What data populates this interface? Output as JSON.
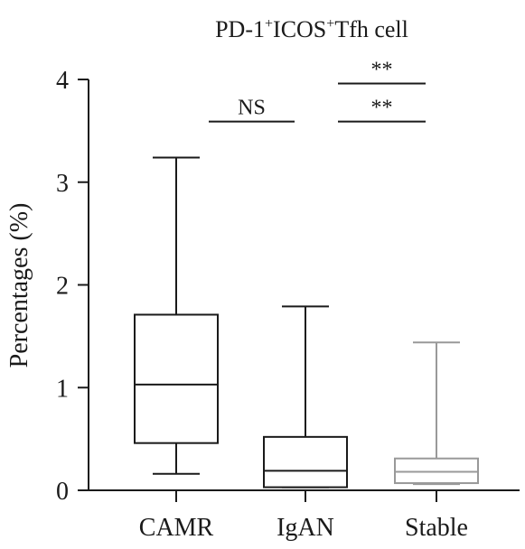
{
  "chart_data": {
    "type": "boxplot",
    "title_parts": [
      {
        "text": "PD-1",
        "sup": false
      },
      {
        "text": "+",
        "sup": true
      },
      {
        "text": "ICOS",
        "sup": false
      },
      {
        "text": "+",
        "sup": true
      },
      {
        "text": "Tfh cell",
        "sup": false
      }
    ],
    "ylabel": "Percentages (%)",
    "ylim": [
      0,
      4
    ],
    "yticks": [
      "0",
      "1",
      "2",
      "3",
      "4"
    ],
    "grid": false,
    "categories": [
      "CAMR",
      "IgAN",
      "Stable"
    ],
    "boxes": [
      {
        "category": "CAMR",
        "min": 0.16,
        "q1": 0.46,
        "median": 1.03,
        "q3": 1.71,
        "max": 3.24,
        "color": "#1a1a1a"
      },
      {
        "category": "IgAN",
        "min": 0.03,
        "q1": 0.03,
        "median": 0.19,
        "q3": 0.52,
        "max": 1.79,
        "color": "#1a1a1a"
      },
      {
        "category": "Stable",
        "min": 0.06,
        "q1": 0.07,
        "median": 0.18,
        "q3": 0.31,
        "max": 1.44,
        "color": "#999999"
      }
    ],
    "significance": [
      {
        "from": 0,
        "to": 1,
        "label": "NS",
        "y": 3.59
      },
      {
        "from": 1,
        "to": 2,
        "label": "**",
        "y": 3.96
      },
      {
        "from": 1,
        "to": 2,
        "label": "**",
        "y": 3.59
      }
    ]
  }
}
